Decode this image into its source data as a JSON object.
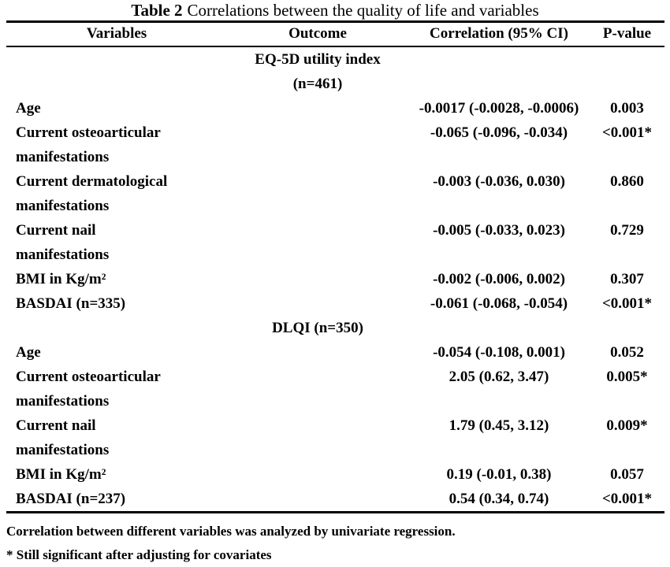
{
  "colors": {
    "text": "#000000",
    "background": "#ffffff",
    "rule": "#000000"
  },
  "title": {
    "label": "Table 2",
    "text": "Correlations between the quality of life and variables"
  },
  "table": {
    "columns": [
      "Variables",
      "Outcome",
      "Correlation (95% CI)",
      "P-value"
    ],
    "sections": [
      {
        "outcome": [
          "EQ-5D utility index",
          "(n=461)"
        ],
        "rows": [
          {
            "variable": [
              "Age"
            ],
            "correlation": "-0.0017 (-0.0028, -0.0006)",
            "p": "0.003"
          },
          {
            "variable": [
              "Current osteoarticular",
              "manifestations"
            ],
            "correlation": "-0.065 (-0.096, -0.034)",
            "p": "<0.001*"
          },
          {
            "variable": [
              "Current dermatological",
              "manifestations"
            ],
            "correlation": "-0.003 (-0.036, 0.030)",
            "p": "0.860"
          },
          {
            "variable": [
              "Current nail",
              "manifestations"
            ],
            "correlation": "-0.005 (-0.033, 0.023)",
            "p": "0.729"
          },
          {
            "variable": [
              "BMI in Kg/m²"
            ],
            "correlation": "-0.002 (-0.006, 0.002)",
            "p": "0.307"
          },
          {
            "variable": [
              "BASDAI (n=335)"
            ],
            "correlation": "-0.061 (-0.068, -0.054)",
            "p": "<0.001*"
          }
        ]
      },
      {
        "outcome": [
          "DLQI (n=350)"
        ],
        "rows": [
          {
            "variable": [
              "Age"
            ],
            "correlation": "-0.054 (-0.108, 0.001)",
            "p": "0.052"
          },
          {
            "variable": [
              "Current osteoarticular",
              "manifestations"
            ],
            "correlation": "2.05 (0.62, 3.47)",
            "p": "0.005*"
          },
          {
            "variable": [
              "Current nail",
              "manifestations"
            ],
            "correlation": "1.79 (0.45, 3.12)",
            "p": "0.009*"
          },
          {
            "variable": [
              "BMI in Kg/m²"
            ],
            "correlation": "0.19 (-0.01, 0.38)",
            "p": "0.057"
          },
          {
            "variable": [
              "BASDAI (n=237)"
            ],
            "correlation": "0.54 (0.34, 0.74)",
            "p": "<0.001*"
          }
        ]
      }
    ]
  },
  "footnotes": [
    "Correlation between different variables was analyzed by univariate regression.",
    "* Still significant after adjusting for covariates"
  ]
}
